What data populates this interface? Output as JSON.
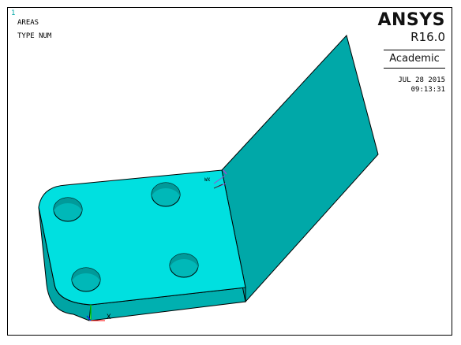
{
  "window": {
    "number": "1"
  },
  "plot_info": {
    "line1": "AREAS",
    "line2": "TYPE NUM"
  },
  "brand": {
    "name": "ANSYS",
    "release": "R16.0",
    "edition": "Academic"
  },
  "timestamp": {
    "date": "JUL 28 2015",
    "time": "09:13:31"
  },
  "model": {
    "fill_color": "#00cccc",
    "edge_color": "#000000",
    "triad_label_x": "X",
    "wp_label": "WX"
  }
}
